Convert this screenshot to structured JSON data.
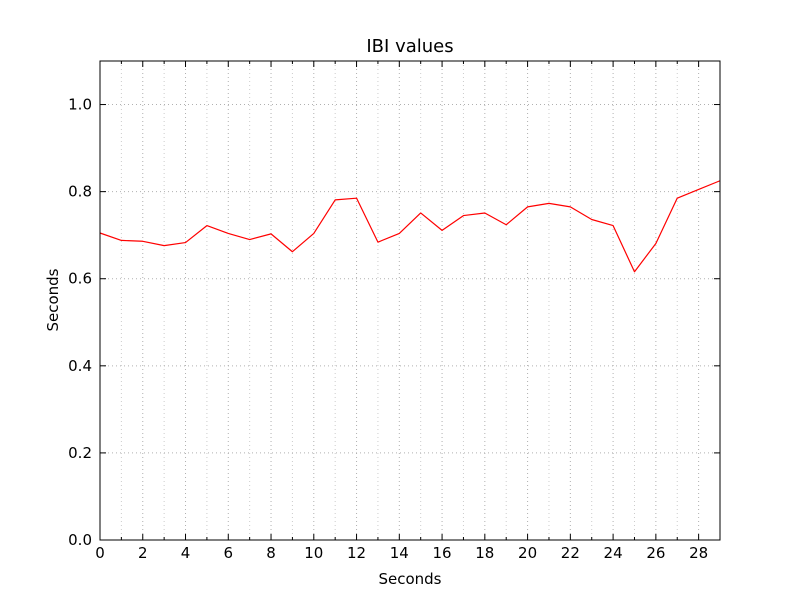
{
  "chart_data": {
    "type": "line",
    "title": "IBI values",
    "xlabel": "Seconds",
    "ylabel": "Seconds",
    "xlim": [
      0,
      29
    ],
    "ylim": [
      0,
      1.1
    ],
    "x_ticks": [
      0,
      2,
      4,
      6,
      8,
      10,
      12,
      14,
      16,
      18,
      20,
      22,
      24,
      26,
      28
    ],
    "x_minor_ticks": [
      1,
      3,
      5,
      7,
      9,
      11,
      13,
      15,
      17,
      19,
      21,
      23,
      25,
      27
    ],
    "y_ticks": [
      0.0,
      0.2,
      0.4,
      0.6,
      0.8,
      1.0
    ],
    "y_tick_labels": [
      "0.0",
      "0.2",
      "0.4",
      "0.6",
      "0.8",
      "1.0"
    ],
    "grid": true,
    "series": [
      {
        "color": "#ff0000",
        "x": [
          0,
          1,
          2,
          3,
          4,
          5,
          6,
          7,
          8,
          9,
          10,
          11,
          12,
          13,
          14,
          15,
          16,
          17,
          18,
          19,
          20,
          21,
          22,
          23,
          24,
          25,
          26,
          27,
          28,
          29
        ],
        "values": [
          0.705,
          0.688,
          0.686,
          0.676,
          0.683,
          0.722,
          0.704,
          0.69,
          0.703,
          0.662,
          0.704,
          0.781,
          0.785,
          0.684,
          0.704,
          0.751,
          0.711,
          0.745,
          0.751,
          0.724,
          0.765,
          0.773,
          0.765,
          0.736,
          0.722,
          0.616,
          0.681,
          0.785,
          0.805,
          0.825
        ]
      }
    ]
  }
}
